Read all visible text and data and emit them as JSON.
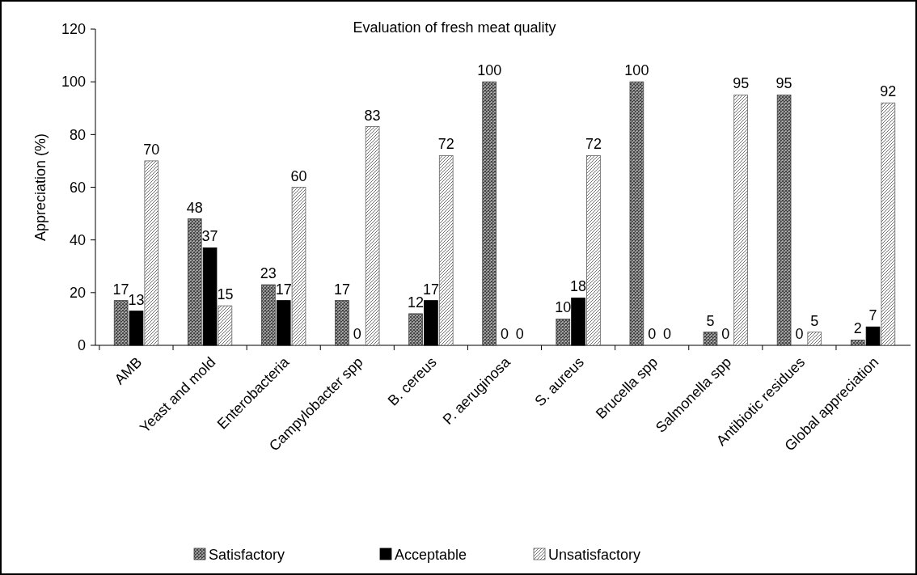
{
  "chart_data": {
    "type": "bar",
    "title": "Evaluation of fresh meat quality",
    "ylabel": "Appreciation (%)",
    "categories": [
      "AMB",
      "Yeast and mold",
      "Enterobacteria",
      "Campylobacter spp",
      "B. cereus",
      "P. aeruginosa",
      "S. aureus",
      "Brucella spp",
      "Salmonella spp",
      "Antibiotic residues",
      "Global appreciation"
    ],
    "series": [
      {
        "name": "Satisfactory",
        "color": "#404040",
        "values": [
          17,
          48,
          23,
          17,
          12,
          100,
          10,
          100,
          5,
          95,
          2
        ]
      },
      {
        "name": "Acceptable",
        "color": "#000000",
        "values": [
          13,
          37,
          17,
          0,
          17,
          0,
          18,
          0,
          0,
          0,
          7
        ]
      },
      {
        "name": "Unsatisfactory",
        "color": "#606060",
        "values": [
          70,
          15,
          60,
          83,
          72,
          0,
          72,
          0,
          95,
          5,
          92
        ]
      }
    ],
    "ylim": [
      0,
      120
    ],
    "yticks": [
      0,
      20,
      40,
      60,
      80,
      100,
      120
    ],
    "data_labels": true,
    "legend": "bottom",
    "grid": false
  }
}
